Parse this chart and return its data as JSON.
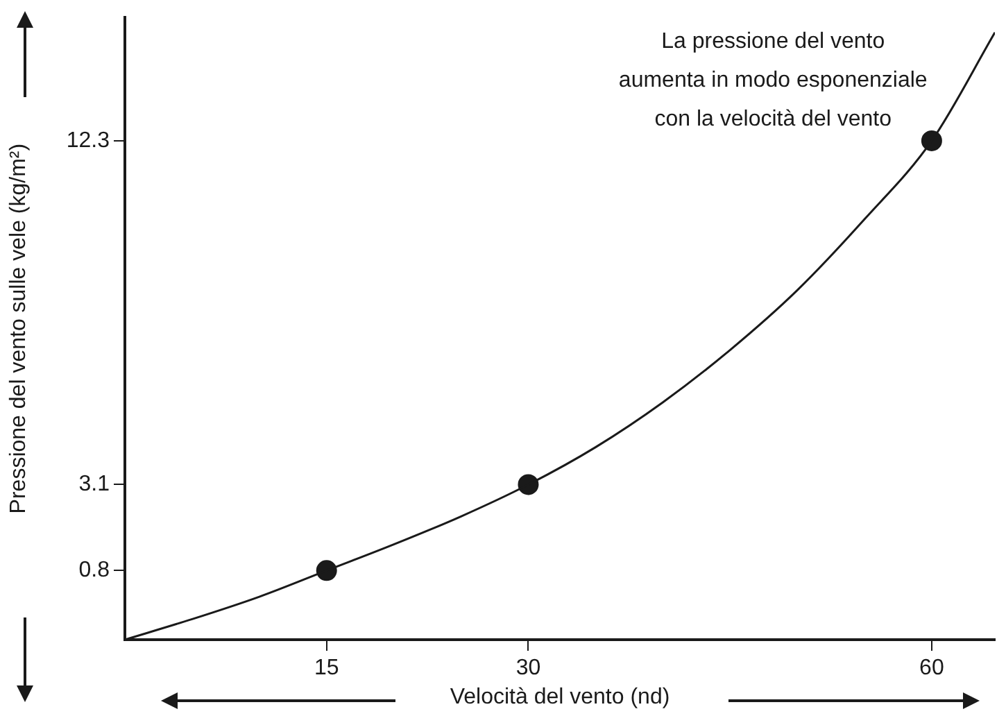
{
  "chart_data": {
    "type": "scatter",
    "xlabel": "Velocità del vento (nd)",
    "ylabel": "Pressione del vento sulle vele (kg/m²)",
    "annotations": [
      "La pressione del vento\naumenta in modo esponenziale\ncon la velocità del vento"
    ],
    "xlim": [
      0,
      64.7
    ],
    "ylim": [
      -1.05,
      15.6
    ],
    "xticks": [
      15,
      30,
      60
    ],
    "yticks": [
      0.8,
      3.1,
      12.3
    ],
    "grid": false,
    "series": [
      {
        "type": "line",
        "color": "#1a1a1a",
        "marker": "none",
        "x": [
          0,
          5,
          10,
          15,
          20,
          25,
          30,
          35,
          40,
          45,
          50,
          55,
          60,
          64.7
        ],
        "values": [
          -1.05,
          -0.5,
          0.1,
          0.8,
          1.5,
          2.25,
          3.1,
          4.1,
          5.3,
          6.7,
          8.3,
          10.2,
          12.3,
          15.2
        ]
      },
      {
        "color": "#1a1a1a",
        "marker": "circle",
        "x": [
          15,
          30,
          60
        ],
        "values": [
          0.8,
          3.1,
          12.3
        ]
      }
    ]
  }
}
